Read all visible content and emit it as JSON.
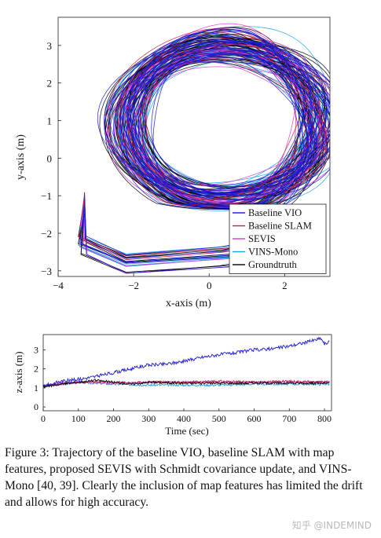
{
  "caption": "Figure 3: Trajectory of the baseline VIO, baseline SLAM with map features, proposed SEVIS with Schmidt covariance update, and VINS-Mono [40, 39]. Clearly the inclusion of map features has limited the drift and allows for high accuracy.",
  "watermark": "知乎 @INDEMIND",
  "chart_data": [
    {
      "type": "line",
      "xlabel": "x-axis (m)",
      "ylabel": "y-axis (m)",
      "xlim": [
        -4,
        3.2
      ],
      "ylim": [
        -3.15,
        3.75
      ],
      "xticks": [
        -4,
        -2,
        0,
        2
      ],
      "yticks": [
        -3,
        -2,
        -1,
        0,
        1,
        2,
        3
      ],
      "grid": false,
      "legend_position": "bottom-right",
      "loop_center": [
        0.4,
        0.9
      ],
      "loop_radii": [
        2.75,
        2.25
      ],
      "series": [
        {
          "name": "Baseline VIO",
          "color": "#1a1ad6"
        },
        {
          "name": "Baseline SLAM",
          "color": "#c8204e"
        },
        {
          "name": "SEVIS",
          "color": "#d83ad8"
        },
        {
          "name": "VINS-Mono",
          "color": "#1fa0e6"
        },
        {
          "name": "Groundtruth",
          "color": "#000000"
        }
      ]
    },
    {
      "type": "line",
      "xlabel": "Time (sec)",
      "ylabel": "z-axis (m)",
      "xlim": [
        0,
        820
      ],
      "ylim": [
        -0.2,
        3.8
      ],
      "xticks": [
        0,
        100,
        200,
        300,
        400,
        500,
        600,
        700,
        800
      ],
      "yticks": [
        0,
        1,
        2,
        3
      ],
      "grid": false,
      "series": [
        {
          "name": "Baseline VIO",
          "color": "#1a1ad6",
          "x": [
            0,
            50,
            100,
            150,
            200,
            250,
            300,
            350,
            400,
            450,
            500,
            550,
            600,
            650,
            700,
            750,
            790,
            800,
            815
          ],
          "y": [
            1.1,
            1.35,
            1.45,
            1.6,
            1.8,
            2.0,
            2.2,
            2.25,
            2.4,
            2.6,
            2.75,
            2.85,
            3.0,
            3.05,
            3.2,
            3.4,
            3.6,
            3.3,
            3.4
          ]
        },
        {
          "name": "Baseline SLAM",
          "color": "#c8204e",
          "x": [
            0,
            50,
            100,
            150,
            200,
            250,
            300,
            400,
            500,
            600,
            700,
            815
          ],
          "y": [
            1.1,
            1.25,
            1.3,
            1.35,
            1.3,
            1.25,
            1.3,
            1.3,
            1.35,
            1.3,
            1.35,
            1.3
          ]
        },
        {
          "name": "SEVIS",
          "color": "#d83ad8",
          "x": [
            0,
            100,
            200,
            300,
            400,
            500,
            600,
            700,
            815
          ],
          "y": [
            1.1,
            1.3,
            1.25,
            1.3,
            1.3,
            1.3,
            1.3,
            1.3,
            1.3
          ]
        },
        {
          "name": "VINS-Mono",
          "color": "#1fa0e6",
          "x": [
            0,
            100,
            200,
            300,
            400,
            500,
            600,
            700,
            815
          ],
          "y": [
            1.1,
            1.3,
            1.2,
            1.15,
            1.15,
            1.15,
            1.2,
            1.2,
            1.2
          ]
        },
        {
          "name": "Groundtruth",
          "color": "#000000",
          "x": [
            0,
            50,
            100,
            150,
            200,
            250,
            300,
            400,
            500,
            600,
            700,
            815
          ],
          "y": [
            1.05,
            1.2,
            1.3,
            1.4,
            1.3,
            1.2,
            1.3,
            1.25,
            1.25,
            1.25,
            1.25,
            1.25
          ]
        }
      ]
    }
  ]
}
